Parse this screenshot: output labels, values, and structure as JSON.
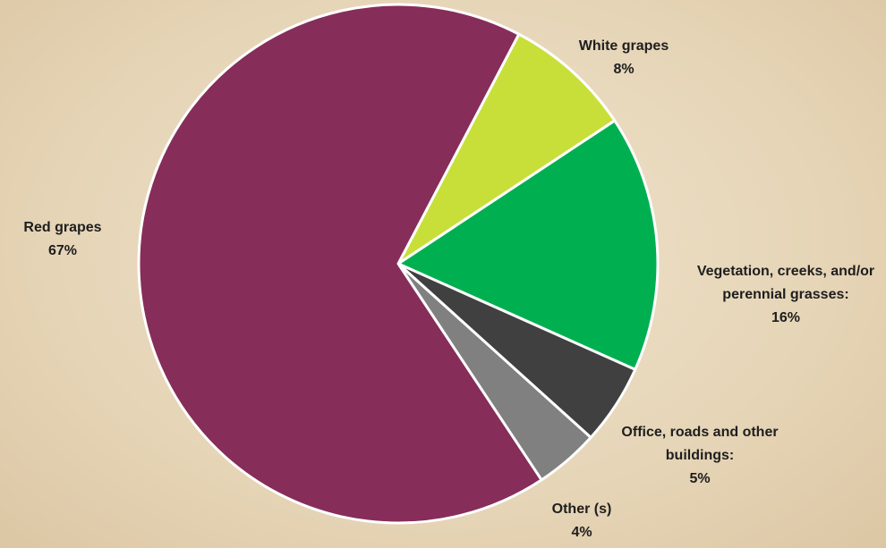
{
  "chart_data": {
    "type": "pie",
    "categories": [
      "White grapes",
      "Vegetation, creeks, and/or perennial grasses:",
      "Office, roads and other buildings:",
      "Other (s)",
      "Red grapes"
    ],
    "values": [
      8,
      16,
      5,
      4,
      67
    ],
    "value_labels": [
      "8%",
      "16%",
      "5%",
      "4%",
      "67%"
    ],
    "colors": [
      "#c8df3a",
      "#00b050",
      "#404040",
      "#808080",
      "#862d59"
    ]
  }
}
